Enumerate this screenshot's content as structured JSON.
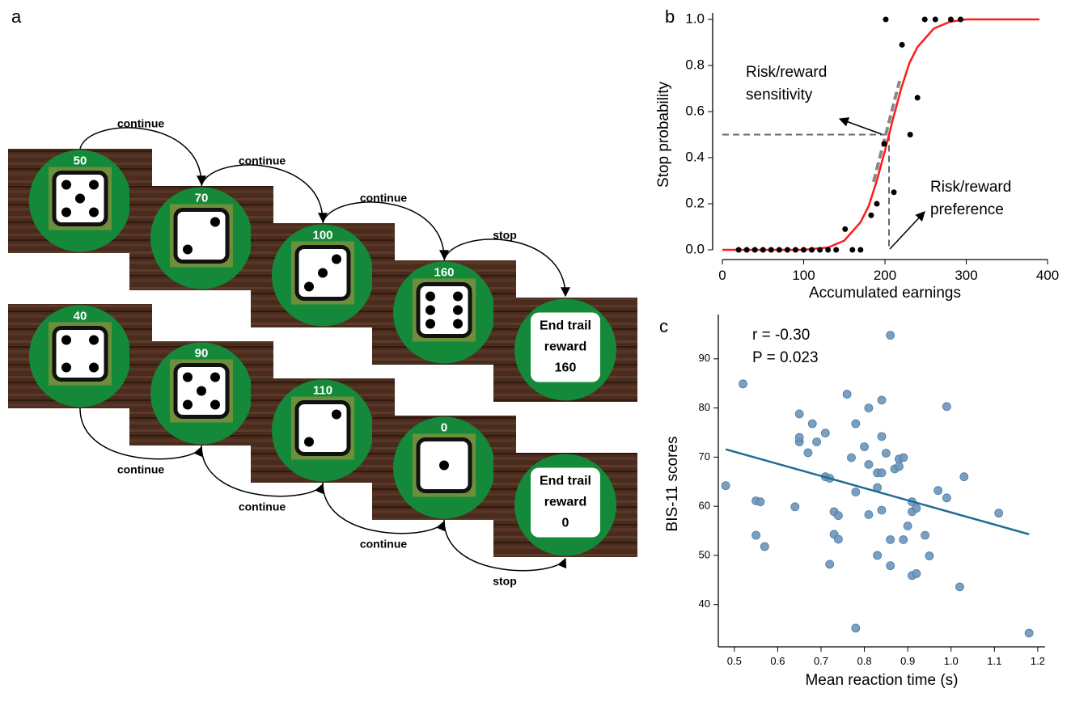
{
  "diagram": {
    "panel_label": "a",
    "rows": [
      {
        "screens": [
          {
            "amount": 50,
            "pips": 5
          },
          {
            "amount": 70,
            "pips": 2
          },
          {
            "amount": 100,
            "pips": 3
          },
          {
            "amount": 160,
            "pips": 6
          },
          {
            "end": [
              "End trail",
              "reward",
              "160"
            ]
          }
        ],
        "actions": [
          "continue",
          "continue",
          "continue",
          "stop"
        ]
      },
      {
        "screens": [
          {
            "amount": 40,
            "pips": 4
          },
          {
            "amount": 90,
            "pips": 5
          },
          {
            "amount": 110,
            "pips": 2
          },
          {
            "amount": 0,
            "pips": 1
          },
          {
            "end": [
              "End trail",
              "reward",
              "0"
            ]
          }
        ],
        "actions": [
          "continue",
          "continue",
          "continue",
          "stop"
        ]
      }
    ]
  },
  "chart_data": [
    {
      "type": "scatter",
      "panel_label": "b",
      "x_label": "Accumulated earnings",
      "y_label": "Stop probability",
      "xlim": [
        0,
        400
      ],
      "ylim": [
        0,
        1
      ],
      "xticks": [
        0,
        100,
        200,
        300,
        400
      ],
      "yticks": [
        {
          "value": 0,
          "label": "0.0"
        },
        0.2,
        0.4,
        0.6,
        0.8,
        {
          "value": 1,
          "label": "1.0"
        }
      ],
      "series": [
        {
          "type": "scatter",
          "color": "#000000",
          "x": [
            20,
            30,
            40,
            50,
            60,
            70,
            80,
            90,
            100,
            110,
            120,
            130,
            140,
            151,
            160,
            170,
            183,
            190,
            199,
            201,
            211,
            221,
            231,
            240,
            249,
            262,
            281,
            293
          ],
          "values": [
            0,
            0,
            0,
            0,
            0,
            0,
            0,
            0,
            0,
            0,
            0,
            0,
            0,
            0.09,
            0,
            0,
            0.15,
            0.2,
            0.46,
            1.0,
            0.25,
            0.89,
            0.5,
            0.66,
            1.0,
            1.0,
            1.0,
            1.0
          ]
        },
        {
          "type": "line",
          "color": "#ff1a1a",
          "x": [
            0,
            50,
            100,
            130,
            150,
            170,
            180,
            190,
            200,
            210,
            220,
            230,
            240,
            260,
            280,
            300,
            350,
            390
          ],
          "values": [
            0,
            0,
            0,
            0.01,
            0.04,
            0.12,
            0.19,
            0.3,
            0.43,
            0.57,
            0.7,
            0.81,
            0.88,
            0.96,
            0.99,
            1.0,
            1.0,
            1.0
          ]
        }
      ],
      "reference": {
        "x": 205,
        "y": 0.5
      },
      "tangent": {
        "x": [
          186,
          218
        ],
        "values": [
          0.295,
          0.733
        ]
      },
      "annotations": [
        [
          "Risk/reward",
          "sensitivity"
        ],
        [
          "Risk/reward",
          "preference"
        ]
      ]
    },
    {
      "type": "scatter",
      "panel_label": "c",
      "x_label": "Mean reaction time (s)",
      "y_label": "BIS-11 scores",
      "xlim": [
        0.463,
        1.217
      ],
      "ylim": [
        31.4,
        97.7
      ],
      "xticks": [
        0.5,
        0.6,
        0.7,
        0.8,
        0.9,
        {
          "value": 1,
          "label": "1.0"
        },
        1.1,
        1.2
      ],
      "yticks": [
        40,
        50,
        60,
        70,
        80,
        90
      ],
      "series": [
        {
          "type": "scatter",
          "color": "#6a96bd",
          "x": [
            0.48,
            0.52,
            0.55,
            0.56,
            0.55,
            0.57,
            0.64,
            0.65,
            0.65,
            0.65,
            0.67,
            0.69,
            0.68,
            0.71,
            0.71,
            0.72,
            0.72,
            0.73,
            0.74,
            0.73,
            0.74,
            0.76,
            0.77,
            0.78,
            0.78,
            0.78,
            0.8,
            0.81,
            0.81,
            0.81,
            0.83,
            0.84,
            0.83,
            0.84,
            0.84,
            0.83,
            0.84,
            0.85,
            0.86,
            0.86,
            0.87,
            0.86,
            0.88,
            0.89,
            0.88,
            0.9,
            0.89,
            0.91,
            0.91,
            0.92,
            0.91,
            0.92,
            0.94,
            0.95,
            0.97,
            0.99,
            0.99,
            1.02,
            1.03,
            1.11,
            1.18
          ],
          "values": [
            64.2,
            84.9,
            61.1,
            60.9,
            54.1,
            51.8,
            59.9,
            73.1,
            74.0,
            78.8,
            70.9,
            73.1,
            76.8,
            74.9,
            66.0,
            65.7,
            48.2,
            54.3,
            53.3,
            58.9,
            58.1,
            82.8,
            69.9,
            76.8,
            62.9,
            35.2,
            72.1,
            68.5,
            58.3,
            80.0,
            63.8,
            81.6,
            66.8,
            74.2,
            59.2,
            50.0,
            66.8,
            70.8,
            94.8,
            47.9,
            67.6,
            53.2,
            69.6,
            69.9,
            68.1,
            56.0,
            53.2,
            58.9,
            60.9,
            59.6,
            45.9,
            46.3,
            54.1,
            49.9,
            63.2,
            61.7,
            80.3,
            43.6,
            66.0,
            58.6,
            34.2
          ]
        },
        {
          "type": "line",
          "color": "#1f6b94",
          "x": [
            0.48,
            1.18
          ],
          "values": [
            71.6,
            54.3
          ]
        }
      ],
      "annotations": [
        [
          "r = -0.30",
          "P = 0.023"
        ]
      ]
    }
  ]
}
